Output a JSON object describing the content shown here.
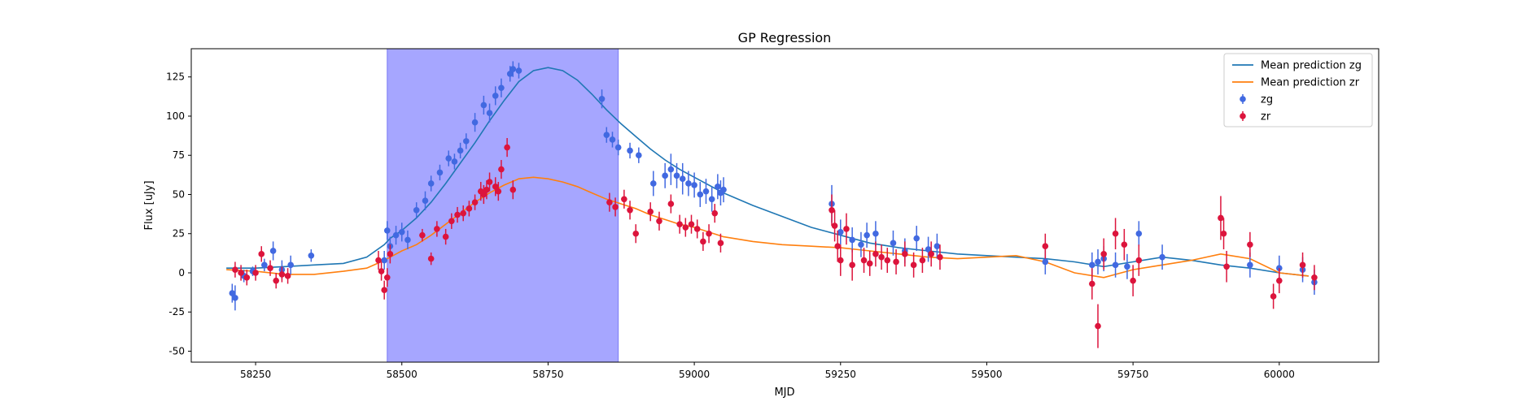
{
  "chart_data": {
    "type": "scatter",
    "title": "GP Regression",
    "xlabel": "MJD",
    "ylabel": "Flux [uJy]",
    "xlim": [
      58140,
      60170
    ],
    "ylim": [
      -57,
      143
    ],
    "xticks": [
      58250,
      58500,
      58750,
      59000,
      59250,
      59500,
      59750,
      60000
    ],
    "yticks": [
      -50,
      -25,
      0,
      25,
      50,
      75,
      100,
      125
    ],
    "grid": false,
    "legend_position": "top-right",
    "shaded_region": {
      "x0": 58475,
      "x1": 58870,
      "color": "#a6a6ff"
    },
    "colors": {
      "zg": "#4169e1",
      "zr": "#dc143c",
      "mean_zg": "#1f77b4",
      "mean_zr": "#ff7f0e"
    },
    "legend": [
      {
        "label": "Mean prediction zg",
        "kind": "line",
        "color": "#1f77b4"
      },
      {
        "label": "Mean prediction zr",
        "kind": "line",
        "color": "#ff7f0e"
      },
      {
        "label": "zg",
        "kind": "errorbar",
        "color": "#4169e1"
      },
      {
        "label": "zr",
        "kind": "errorbar",
        "color": "#dc143c"
      }
    ],
    "series": [
      {
        "name": "Mean prediction zg",
        "kind": "line",
        "x": [
          58200,
          58250,
          58300,
          58350,
          58400,
          58440,
          58470,
          58480,
          58500,
          58525,
          58550,
          58575,
          58600,
          58625,
          58650,
          58675,
          58700,
          58725,
          58750,
          58775,
          58800,
          58825,
          58850,
          58875,
          58900,
          58925,
          58950,
          58975,
          59000,
          59050,
          59100,
          59150,
          59200,
          59250,
          59300,
          59350,
          59400,
          59450,
          59500,
          59550,
          59600,
          59650,
          59700,
          59750,
          59800,
          59850,
          59900,
          59950,
          60000,
          60050
        ],
        "y": [
          3,
          3,
          4,
          5,
          6,
          10,
          18,
          22,
          27,
          35,
          45,
          57,
          70,
          83,
          97,
          110,
          122,
          129,
          131,
          129,
          123,
          114,
          104,
          95,
          87,
          79,
          72,
          66,
          61,
          51,
          43,
          36,
          29,
          24,
          19,
          16,
          14,
          12,
          11,
          10,
          9,
          7,
          4,
          7,
          10,
          8,
          5,
          3,
          0,
          -2
        ]
      },
      {
        "name": "Mean prediction zr",
        "kind": "line",
        "x": [
          58200,
          58250,
          58300,
          58350,
          58400,
          58440,
          58470,
          58480,
          58500,
          58525,
          58550,
          58575,
          58600,
          58625,
          58650,
          58675,
          58700,
          58725,
          58750,
          58775,
          58800,
          58825,
          58850,
          58875,
          58900,
          58925,
          58950,
          58975,
          59000,
          59050,
          59100,
          59150,
          59200,
          59250,
          59300,
          59350,
          59400,
          59450,
          59500,
          59550,
          59600,
          59650,
          59700,
          59750,
          59800,
          59850,
          59900,
          59950,
          60000,
          60050
        ],
        "y": [
          2,
          1,
          -1,
          -1,
          1,
          3,
          8,
          10,
          14,
          18,
          24,
          31,
          38,
          45,
          51,
          56,
          60,
          61,
          60,
          58,
          55,
          51,
          47,
          44,
          41,
          37,
          34,
          31,
          29,
          23,
          20,
          18,
          17,
          16,
          14,
          12,
          10,
          9,
          10,
          11,
          7,
          0,
          -3,
          2,
          5,
          8,
          12,
          9,
          0,
          -2
        ]
      },
      {
        "name": "zg",
        "kind": "errorbar",
        "x": [
          58210,
          58215,
          58230,
          58245,
          58265,
          58280,
          58295,
          58310,
          58345,
          58470,
          58475,
          58480,
          58490,
          58500,
          58510,
          58525,
          58540,
          58550,
          58565,
          58580,
          58590,
          58600,
          58610,
          58625,
          58640,
          58650,
          58660,
          58670,
          58685,
          58690,
          58700,
          58842,
          58850,
          58860,
          58870,
          58890,
          58905,
          58930,
          58950,
          58960,
          58970,
          58980,
          58990,
          59000,
          59010,
          59020,
          59030,
          59040,
          59045,
          59050,
          59235,
          59250,
          59270,
          59285,
          59295,
          59310,
          59340,
          59360,
          59380,
          59400,
          59415,
          59600,
          59680,
          59690,
          59700,
          59720,
          59740,
          59760,
          59800,
          59950,
          60000,
          60040,
          60060
        ],
        "y": [
          -13,
          -16,
          -2,
          1,
          5,
          14,
          2,
          5,
          11,
          8,
          27,
          17,
          24,
          26,
          21,
          40,
          46,
          57,
          64,
          73,
          71,
          78,
          84,
          96,
          107,
          102,
          113,
          118,
          127,
          130,
          129,
          111,
          88,
          85,
          80,
          78,
          75,
          57,
          62,
          66,
          62,
          60,
          57,
          56,
          50,
          52,
          47,
          55,
          51,
          53,
          44,
          26,
          21,
          18,
          24,
          25,
          19,
          14,
          22,
          15,
          17,
          7,
          5,
          7,
          9,
          5,
          4,
          25,
          10,
          5,
          3,
          2,
          -6
        ],
        "err": [
          6,
          8,
          4,
          3,
          4,
          6,
          6,
          6,
          4,
          6,
          6,
          6,
          6,
          6,
          6,
          5,
          6,
          5,
          5,
          5,
          5,
          5,
          5,
          6,
          6,
          6,
          6,
          6,
          5,
          5,
          5,
          6,
          5,
          5,
          5,
          5,
          5,
          8,
          8,
          10,
          8,
          10,
          8,
          8,
          8,
          8,
          8,
          8,
          8,
          8,
          12,
          8,
          8,
          8,
          8,
          8,
          8,
          8,
          8,
          8,
          8,
          8,
          8,
          8,
          8,
          8,
          8,
          8,
          8,
          8,
          8,
          8,
          8
        ]
      },
      {
        "name": "zr",
        "kind": "errorbar",
        "x": [
          58215,
          58225,
          58235,
          58250,
          58260,
          58275,
          58285,
          58295,
          58305,
          58460,
          58465,
          58470,
          58475,
          58480,
          58535,
          58550,
          58560,
          58575,
          58585,
          58595,
          58605,
          58615,
          58625,
          58635,
          58640,
          58645,
          58650,
          58660,
          58665,
          58670,
          58680,
          58690,
          58855,
          58865,
          58880,
          58890,
          58900,
          58925,
          58940,
          58960,
          58975,
          58985,
          58995,
          59005,
          59015,
          59025,
          59035,
          59045,
          59235,
          59240,
          59245,
          59250,
          59260,
          59270,
          59290,
          59300,
          59310,
          59320,
          59330,
          59345,
          59360,
          59375,
          59390,
          59405,
          59420,
          59600,
          59680,
          59690,
          59700,
          59720,
          59735,
          59750,
          59760,
          59900,
          59905,
          59910,
          59950,
          59990,
          60000,
          60040,
          60060
        ],
        "y": [
          2,
          0,
          -3,
          0,
          12,
          3,
          -5,
          -1,
          -2,
          8,
          1,
          -11,
          -3,
          12,
          24,
          9,
          28,
          23,
          33,
          37,
          38,
          41,
          45,
          52,
          50,
          53,
          58,
          55,
          52,
          66,
          80,
          53,
          45,
          42,
          47,
          40,
          25,
          39,
          33,
          44,
          31,
          29,
          31,
          28,
          20,
          25,
          38,
          19,
          40,
          30,
          17,
          8,
          28,
          5,
          8,
          6,
          12,
          10,
          8,
          7,
          12,
          5,
          8,
          12,
          10,
          17,
          -7,
          -34,
          12,
          25,
          18,
          -5,
          8,
          35,
          25,
          4,
          18,
          -15,
          -5,
          5,
          -3
        ],
        "err": [
          5,
          5,
          5,
          5,
          5,
          5,
          5,
          5,
          5,
          6,
          6,
          6,
          6,
          6,
          4,
          4,
          5,
          5,
          5,
          5,
          5,
          5,
          5,
          6,
          6,
          6,
          6,
          6,
          6,
          6,
          6,
          6,
          6,
          6,
          6,
          6,
          6,
          6,
          6,
          6,
          6,
          6,
          6,
          6,
          6,
          6,
          6,
          6,
          10,
          10,
          10,
          10,
          10,
          10,
          8,
          8,
          8,
          8,
          8,
          8,
          8,
          8,
          8,
          8,
          8,
          8,
          10,
          14,
          10,
          10,
          10,
          10,
          10,
          14,
          10,
          10,
          8,
          8,
          8,
          8,
          8
        ]
      }
    ]
  }
}
